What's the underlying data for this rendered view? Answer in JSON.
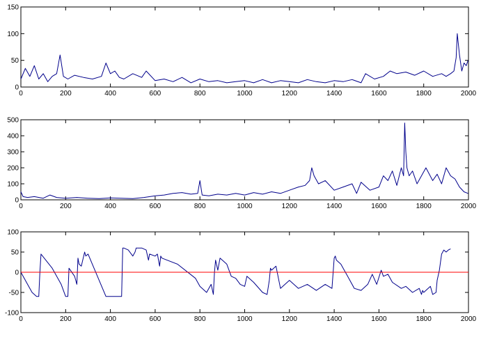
{
  "chart_data": [
    {
      "type": "line",
      "title": "",
      "xlabel": "",
      "ylabel": "",
      "xlim": [
        0,
        2000
      ],
      "ylim": [
        0,
        150
      ],
      "xticks": [
        0,
        200,
        400,
        600,
        800,
        1000,
        1200,
        1400,
        1600,
        1800,
        2000
      ],
      "yticks": [
        0,
        50,
        100,
        150
      ],
      "series": [
        {
          "color": "#00008b",
          "x": [
            0,
            20,
            40,
            60,
            80,
            100,
            120,
            140,
            160,
            175,
            190,
            210,
            240,
            280,
            320,
            360,
            380,
            400,
            420,
            440,
            460,
            500,
            540,
            560,
            600,
            640,
            680,
            720,
            760,
            800,
            840,
            880,
            920,
            960,
            1000,
            1040,
            1080,
            1120,
            1160,
            1200,
            1240,
            1280,
            1320,
            1360,
            1400,
            1440,
            1480,
            1520,
            1540,
            1580,
            1620,
            1650,
            1680,
            1720,
            1760,
            1800,
            1840,
            1880,
            1900,
            1920,
            1935,
            1945,
            1950,
            1960,
            1970,
            1980,
            1990,
            1998
          ],
          "y": [
            15,
            35,
            20,
            40,
            15,
            25,
            10,
            20,
            25,
            60,
            20,
            15,
            22,
            18,
            15,
            20,
            45,
            25,
            30,
            18,
            15,
            25,
            18,
            30,
            12,
            15,
            10,
            18,
            8,
            15,
            10,
            12,
            8,
            10,
            12,
            8,
            14,
            8,
            12,
            10,
            8,
            14,
            10,
            8,
            12,
            10,
            14,
            8,
            25,
            15,
            20,
            30,
            25,
            28,
            22,
            30,
            20,
            25,
            20,
            25,
            30,
            55,
            100,
            60,
            30,
            45,
            40,
            50
          ]
        }
      ]
    },
    {
      "type": "line",
      "title": "",
      "xlabel": "",
      "ylabel": "",
      "xlim": [
        0,
        2000
      ],
      "ylim": [
        0,
        500
      ],
      "xticks": [
        0,
        200,
        400,
        600,
        800,
        1000,
        1200,
        1400,
        1600,
        1800,
        2000
      ],
      "yticks": [
        0,
        100,
        200,
        300,
        400,
        500
      ],
      "series": [
        {
          "color": "#00008b",
          "x": [
            0,
            10,
            30,
            60,
            100,
            130,
            160,
            200,
            250,
            300,
            350,
            400,
            450,
            500,
            550,
            600,
            640,
            680,
            720,
            760,
            790,
            800,
            810,
            840,
            880,
            920,
            960,
            1000,
            1040,
            1080,
            1120,
            1160,
            1200,
            1240,
            1270,
            1290,
            1300,
            1310,
            1330,
            1360,
            1400,
            1440,
            1480,
            1500,
            1520,
            1560,
            1600,
            1620,
            1640,
            1660,
            1680,
            1700,
            1710,
            1715,
            1720,
            1725,
            1735,
            1750,
            1770,
            1790,
            1810,
            1840,
            1860,
            1880,
            1900,
            1920,
            1940,
            1960,
            1980,
            1998
          ],
          "y": [
            50,
            20,
            15,
            20,
            10,
            30,
            15,
            10,
            15,
            10,
            8,
            12,
            10,
            8,
            15,
            25,
            30,
            40,
            45,
            35,
            40,
            120,
            30,
            25,
            35,
            30,
            40,
            30,
            45,
            35,
            50,
            40,
            60,
            80,
            90,
            120,
            200,
            150,
            100,
            120,
            60,
            80,
            100,
            40,
            110,
            60,
            80,
            150,
            120,
            180,
            90,
            200,
            150,
            480,
            300,
            200,
            150,
            180,
            100,
            150,
            200,
            120,
            160,
            100,
            200,
            150,
            130,
            80,
            50,
            40
          ]
        }
      ]
    },
    {
      "type": "line",
      "title": "",
      "xlabel": "",
      "ylabel": "",
      "xlim": [
        0,
        2000
      ],
      "ylim": [
        -100,
        100
      ],
      "xticks": [
        0,
        200,
        400,
        600,
        800,
        1000,
        1200,
        1400,
        1600,
        1800,
        2000
      ],
      "yticks": [
        -100,
        -50,
        0,
        50,
        100
      ],
      "series": [
        {
          "color": "#00008b",
          "x": [
            0,
            10,
            30,
            50,
            70,
            80,
            85,
            90,
            140,
            180,
            200,
            210,
            215,
            240,
            250,
            255,
            260,
            270,
            285,
            290,
            300,
            380,
            440,
            450,
            455,
            460,
            480,
            500,
            510,
            515,
            540,
            560,
            570,
            575,
            600,
            610,
            620,
            625,
            630,
            700,
            780,
            800,
            830,
            850,
            860,
            865,
            870,
            880,
            890,
            900,
            920,
            940,
            960,
            980,
            1000,
            1010,
            1040,
            1080,
            1100,
            1110,
            1115,
            1120,
            1140,
            1160,
            1200,
            1240,
            1280,
            1320,
            1360,
            1390,
            1400,
            1405,
            1410,
            1430,
            1460,
            1490,
            1520,
            1550,
            1570,
            1590,
            1610,
            1620,
            1640,
            1660,
            1700,
            1720,
            1750,
            1780,
            1790,
            1795,
            1800,
            1830,
            1840,
            1855,
            1860,
            1870,
            1880,
            1890,
            1900,
            1910,
            1920
          ],
          "y": [
            0,
            -10,
            -30,
            -50,
            -60,
            -60,
            0,
            45,
            10,
            -30,
            -60,
            -60,
            10,
            -10,
            -30,
            35,
            20,
            15,
            50,
            40,
            45,
            -60,
            -60,
            -60,
            60,
            60,
            55,
            40,
            50,
            60,
            60,
            55,
            30,
            45,
            40,
            45,
            15,
            40,
            35,
            20,
            -15,
            -35,
            -50,
            -30,
            -55,
            0,
            30,
            5,
            35,
            30,
            20,
            -10,
            -15,
            -30,
            -35,
            -10,
            -25,
            -50,
            -55,
            -20,
            10,
            5,
            15,
            -40,
            -20,
            -40,
            -30,
            -45,
            -30,
            -40,
            35,
            40,
            30,
            20,
            -10,
            -40,
            -45,
            -30,
            -5,
            -30,
            5,
            -10,
            -5,
            -25,
            -40,
            -35,
            -50,
            -40,
            -55,
            -45,
            -50,
            -35,
            -55,
            -50,
            -20,
            5,
            45,
            55,
            50,
            55,
            58
          ]
        },
        {
          "color": "#ff0000",
          "x": [
            0,
            2000
          ],
          "y": [
            0,
            0
          ]
        }
      ]
    }
  ]
}
